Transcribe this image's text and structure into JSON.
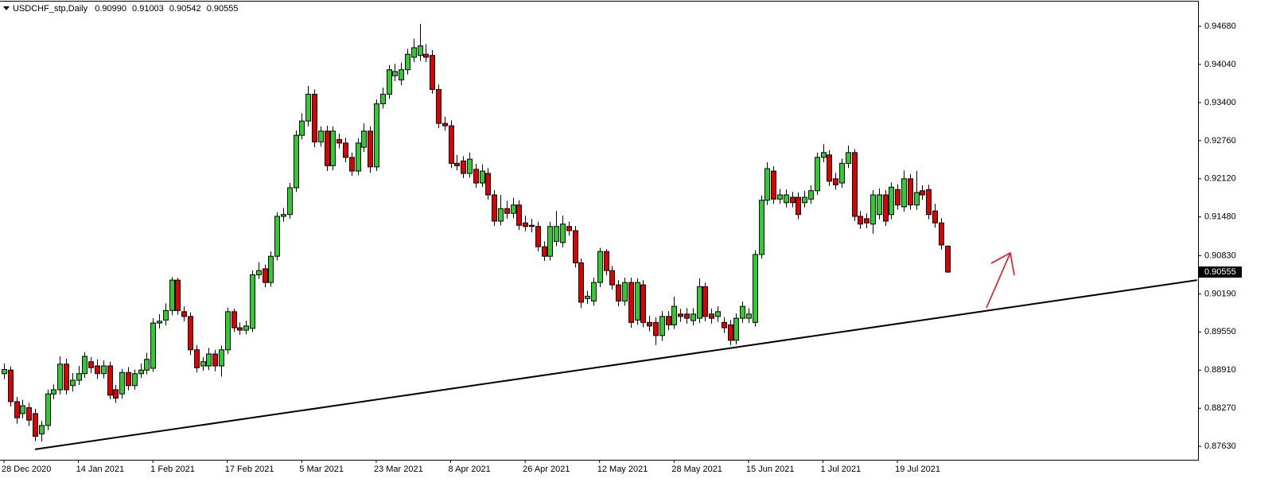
{
  "chart_data": {
    "type": "candlestick",
    "symbol": "USDCHF_stp,Daily",
    "last_bar_labels": [
      "0.90990",
      "0.91003",
      "0.90542",
      "0.90555"
    ],
    "up_color": "#2ecc2e",
    "down_color": "#dd0000",
    "categories": [
      "28 Dec 2020",
      null,
      null,
      null,
      null,
      null,
      null,
      null,
      null,
      null,
      null,
      null,
      "14 Jan 2021",
      null,
      null,
      null,
      null,
      null,
      null,
      null,
      null,
      null,
      null,
      null,
      "1 Feb 2021",
      null,
      null,
      null,
      null,
      null,
      null,
      null,
      null,
      null,
      null,
      null,
      "17 Feb 2021",
      null,
      null,
      null,
      null,
      null,
      null,
      null,
      null,
      null,
      null,
      null,
      "5 Mar 2021",
      null,
      null,
      null,
      null,
      null,
      null,
      null,
      null,
      null,
      null,
      null,
      "23 Mar 2021",
      null,
      null,
      null,
      null,
      null,
      null,
      null,
      null,
      null,
      null,
      null,
      "8 Apr 2021",
      null,
      null,
      null,
      null,
      null,
      null,
      null,
      null,
      null,
      null,
      null,
      "26 Apr 2021",
      null,
      null,
      null,
      null,
      null,
      null,
      null,
      null,
      null,
      null,
      null,
      "12 May 2021",
      null,
      null,
      null,
      null,
      null,
      null,
      null,
      null,
      null,
      null,
      null,
      "28 May 2021",
      null,
      null,
      null,
      null,
      null,
      null,
      null,
      null,
      null,
      null,
      null,
      "15 Jun 2021",
      null,
      null,
      null,
      null,
      null,
      null,
      null,
      null,
      null,
      null,
      null,
      "1 Jul 2021",
      null,
      null,
      null,
      null,
      null,
      null,
      null,
      null,
      null,
      null,
      null,
      "19 Jul 2021",
      null,
      null,
      null,
      null,
      null,
      null,
      null,
      null
    ],
    "open": [
      0.8885,
      0.8891,
      0.8838,
      0.8818,
      0.8828,
      0.8818,
      0.8784,
      0.8798,
      0.8851,
      0.8858,
      0.8901,
      0.8865,
      0.8874,
      0.8885,
      0.8905,
      0.8898,
      0.8885,
      0.8898,
      0.8858,
      0.8851,
      0.8887,
      0.8865,
      0.8885,
      0.8891,
      0.8894,
      0.897,
      0.8975,
      0.8991,
      0.9042,
      0.8989,
      0.8981,
      0.8925,
      0.8898,
      0.8898,
      0.8918,
      0.8898,
      0.8925,
      0.8989,
      0.8962,
      0.8958,
      0.8961,
      0.9051,
      0.9061,
      0.9038,
      0.9082,
      0.9149,
      0.9152,
      0.9197,
      0.9285,
      0.9309,
      0.9354,
      0.9274,
      0.9292,
      0.9234,
      0.9278,
      0.9272,
      0.9248,
      0.9225,
      0.9265,
      0.9292,
      0.9232,
      0.9338,
      0.9354,
      0.9385,
      0.9378,
      0.9395,
      0.9416,
      0.9419,
      0.9421,
      0.9419,
      0.9362,
      0.9305,
      0.9301,
      0.9238,
      0.9242,
      0.9221,
      0.9228,
      0.9205,
      0.9221,
      0.9185,
      0.9141,
      0.9162,
      0.9154,
      0.9168,
      0.9138,
      0.9134,
      0.9132,
      0.9098,
      0.9082,
      0.9107,
      0.9105,
      0.9132,
      0.9125,
      0.9071,
      0.9011,
      0.9007,
      0.9038,
      0.909,
      0.9058,
      0.9034,
      0.9007,
      0.9038,
      0.8975,
      0.9034,
      0.8971,
      0.8971,
      0.8949,
      0.8981,
      0.8967,
      0.8985,
      0.8985,
      0.8974,
      0.8978,
      0.9031,
      0.8985,
      0.8981,
      0.8971,
      0.8967,
      0.8941,
      0.8978,
      0.8978,
      0.8971,
      0.9085,
      0.9176,
      0.9225,
      0.9178,
      0.9172,
      0.9181,
      0.9181,
      0.9172,
      0.9178,
      0.9192,
      0.9248,
      0.9252,
      0.9212,
      0.9205,
      0.9238,
      0.9256,
      0.9149,
      0.9145,
      0.9136,
      0.9152,
      0.9185,
      0.9152,
      0.9194,
      0.9165,
      0.9212,
      0.9168,
      0.9192,
      0.9194,
      0.9158,
      0.9138,
      0.9099
    ],
    "high": [
      0.8902,
      0.8897,
      0.8846,
      0.8841,
      0.8836,
      0.8826,
      0.8806,
      0.8858,
      0.8867,
      0.8914,
      0.891,
      0.8886,
      0.8898,
      0.8921,
      0.8913,
      0.8909,
      0.8907,
      0.8905,
      0.8866,
      0.8893,
      0.8896,
      0.8892,
      0.8902,
      0.892,
      0.8978,
      0.8985,
      0.9003,
      0.9047,
      0.9046,
      0.8998,
      0.8988,
      0.8933,
      0.8913,
      0.8928,
      0.8925,
      0.8932,
      0.8996,
      0.8994,
      0.8971,
      0.8974,
      0.9058,
      0.9072,
      0.9068,
      0.909,
      0.9156,
      0.9163,
      0.9205,
      0.9293,
      0.9322,
      0.9368,
      0.9362,
      0.93,
      0.9301,
      0.93,
      0.9288,
      0.9281,
      0.9256,
      0.928,
      0.9305,
      0.93,
      0.9345,
      0.9365,
      0.9403,
      0.9405,
      0.9407,
      0.943,
      0.9447,
      0.9472,
      0.9438,
      0.9428,
      0.937,
      0.9316,
      0.931,
      0.9252,
      0.925,
      0.9256,
      0.9237,
      0.9236,
      0.923,
      0.9193,
      0.9185,
      0.9175,
      0.918,
      0.9176,
      0.915,
      0.9145,
      0.914,
      0.9107,
      0.914,
      0.9158,
      0.915,
      0.914,
      0.9133,
      0.9078,
      0.9024,
      0.9046,
      0.9096,
      0.9094,
      0.9066,
      0.9042,
      0.9046,
      0.9046,
      0.9045,
      0.9042,
      0.8982,
      0.898,
      0.899,
      0.899,
      0.9014,
      0.8994,
      0.8995,
      0.8995,
      0.9045,
      0.9038,
      0.8994,
      0.8998,
      0.898,
      0.8975,
      0.8986,
      0.9006,
      0.8995,
      0.9092,
      0.9184,
      0.924,
      0.9233,
      0.9195,
      0.9194,
      0.919,
      0.9189,
      0.9192,
      0.9201,
      0.9256,
      0.927,
      0.926,
      0.9222,
      0.9246,
      0.9268,
      0.9262,
      0.9158,
      0.9154,
      0.9193,
      0.9196,
      0.9193,
      0.9206,
      0.9203,
      0.9226,
      0.922,
      0.9225,
      0.9201,
      0.9202,
      0.917,
      0.9146,
      0.91003
    ],
    "low": [
      0.8876,
      0.883,
      0.8801,
      0.881,
      0.8797,
      0.8772,
      0.8771,
      0.879,
      0.8842,
      0.885,
      0.885,
      0.8855,
      0.8866,
      0.8878,
      0.8886,
      0.8876,
      0.8877,
      0.8842,
      0.8836,
      0.8843,
      0.8857,
      0.8858,
      0.8878,
      0.8884,
      0.8888,
      0.8961,
      0.8966,
      0.8983,
      0.8984,
      0.8973,
      0.8916,
      0.8887,
      0.889,
      0.8891,
      0.8889,
      0.888,
      0.8918,
      0.8955,
      0.895,
      0.8951,
      0.8955,
      0.9044,
      0.903,
      0.9031,
      0.9075,
      0.914,
      0.9145,
      0.919,
      0.9278,
      0.93,
      0.9265,
      0.9266,
      0.9225,
      0.9226,
      0.9263,
      0.924,
      0.9217,
      0.9218,
      0.9257,
      0.9222,
      0.9225,
      0.933,
      0.9346,
      0.9376,
      0.9369,
      0.9387,
      0.9408,
      0.941,
      0.9408,
      0.9355,
      0.9297,
      0.9293,
      0.923,
      0.9226,
      0.9213,
      0.9214,
      0.9197,
      0.9198,
      0.9177,
      0.9133,
      0.9134,
      0.9145,
      0.9146,
      0.9126,
      0.9124,
      0.9122,
      0.909,
      0.9074,
      0.9075,
      0.9099,
      0.9097,
      0.9117,
      0.9063,
      0.8995,
      0.9002,
      0.8999,
      0.903,
      0.905,
      0.9026,
      0.8998,
      0.8999,
      0.8962,
      0.8967,
      0.8963,
      0.8956,
      0.8933,
      0.894,
      0.8958,
      0.896,
      0.8972,
      0.8969,
      0.8966,
      0.897,
      0.8973,
      0.8969,
      0.8972,
      0.8953,
      0.8933,
      0.8934,
      0.897,
      0.897,
      0.8964,
      0.9078,
      0.9168,
      0.917,
      0.917,
      0.9164,
      0.9164,
      0.9144,
      0.9164,
      0.917,
      0.9185,
      0.924,
      0.92,
      0.9194,
      0.9197,
      0.923,
      0.9141,
      0.9128,
      0.9129,
      0.912,
      0.9144,
      0.9133,
      0.9144,
      0.916,
      0.9157,
      0.916,
      0.916,
      0.9177,
      0.9144,
      0.913,
      0.9093,
      0.90542
    ],
    "close": [
      0.8892,
      0.8838,
      0.8811,
      0.8831,
      0.8807,
      0.878,
      0.8798,
      0.8851,
      0.8858,
      0.8901,
      0.8858,
      0.8874,
      0.8885,
      0.8914,
      0.8895,
      0.8885,
      0.8898,
      0.8849,
      0.8844,
      0.8887,
      0.8865,
      0.8885,
      0.8891,
      0.8909,
      0.897,
      0.8973,
      0.8991,
      0.9042,
      0.8991,
      0.8981,
      0.8925,
      0.8895,
      0.8905,
      0.8918,
      0.8898,
      0.8925,
      0.8989,
      0.8962,
      0.8958,
      0.8965,
      0.9051,
      0.9058,
      0.9038,
      0.9082,
      0.9149,
      0.9152,
      0.9197,
      0.9285,
      0.9309,
      0.9354,
      0.9274,
      0.9292,
      0.9234,
      0.9292,
      0.9272,
      0.9248,
      0.9225,
      0.9272,
      0.9292,
      0.9232,
      0.9338,
      0.9354,
      0.9395,
      0.9392,
      0.9395,
      0.9421,
      0.9432,
      0.9435,
      0.9416,
      0.9362,
      0.9305,
      0.9301,
      0.9238,
      0.9234,
      0.9221,
      0.9245,
      0.9205,
      0.9225,
      0.9185,
      0.9141,
      0.9162,
      0.9154,
      0.9168,
      0.9134,
      0.9132,
      0.9132,
      0.9098,
      0.9082,
      0.9132,
      0.9132,
      0.9136,
      0.9125,
      0.9071,
      0.9005,
      0.9015,
      0.9038,
      0.909,
      0.9058,
      0.9034,
      0.9007,
      0.9038,
      0.8971,
      0.9038,
      0.8971,
      0.8965,
      0.8949,
      0.8981,
      0.8967,
      0.8998,
      0.8981,
      0.8978,
      0.8985,
      0.9031,
      0.8981,
      0.8978,
      0.8989,
      0.8962,
      0.8941,
      0.8978,
      0.8998,
      0.8985,
      0.9085,
      0.9176,
      0.9229,
      0.9178,
      0.9185,
      0.9185,
      0.9172,
      0.9152,
      0.9181,
      0.9192,
      0.9248,
      0.9256,
      0.9208,
      0.9202,
      0.9238,
      0.9256,
      0.9149,
      0.9136,
      0.9138,
      0.9185,
      0.9185,
      0.9141,
      0.9198,
      0.9168,
      0.9212,
      0.9168,
      0.9189,
      0.9185,
      0.9152,
      0.9138,
      0.9101,
      0.90555
    ],
    "xlim": [
      -0.64,
      192.45
    ],
    "ylim": [
      0.87405,
      0.95094
    ],
    "yticks": [
      {
        "value": 0.9468,
        "label": "0.94680"
      },
      {
        "value": 0.9404,
        "label": "0.94040"
      },
      {
        "value": 0.934,
        "label": "0.93400"
      },
      {
        "value": 0.9276,
        "label": "0.92760"
      },
      {
        "value": 0.9212,
        "label": "0.92120"
      },
      {
        "value": 0.9148,
        "label": "0.91480"
      },
      {
        "value": 0.9083,
        "label": "0.90830"
      },
      {
        "value": 0.9019,
        "label": "0.90190"
      },
      {
        "value": 0.8955,
        "label": "0.89550"
      },
      {
        "value": 0.8891,
        "label": "0.88910"
      },
      {
        "value": 0.8827,
        "label": "0.88270"
      },
      {
        "value": 0.8763,
        "label": "0.87630"
      }
    ],
    "trendline": {
      "x": [
        5,
        192.3
      ],
      "y": [
        0.8758,
        0.9042
      ]
    }
  }
}
